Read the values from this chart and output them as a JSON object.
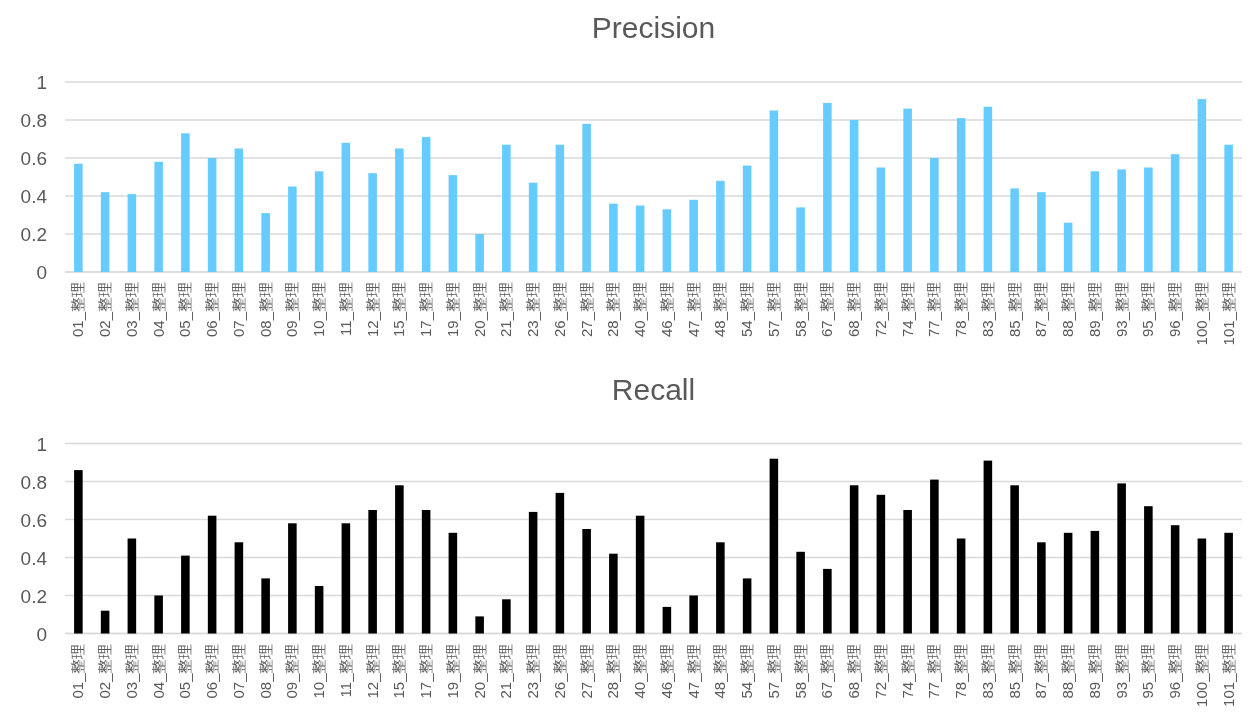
{
  "chart_data": [
    {
      "type": "bar",
      "title": "Precision",
      "categories": [
        "01_整理",
        "02_整理",
        "03_整理",
        "04_整理",
        "05_整理",
        "06_整理",
        "07_整理",
        "08_整理",
        "09_整理",
        "10_整理",
        "11_整理",
        "12_整理",
        "15_整理",
        "17_整理",
        "19_整理",
        "20_整理",
        "21_整理",
        "23_整理",
        "26_整理",
        "27_整理",
        "28_整理",
        "40_整理",
        "46_整理",
        "47_整理",
        "48_整理",
        "54_整理",
        "57_整理",
        "58_整理",
        "67_整理",
        "68_整理",
        "72_整理",
        "74_整理",
        "77_整理",
        "78_整理",
        "83_整理",
        "85_整理",
        "87_整理",
        "88_整理",
        "89_整理",
        "93_整理",
        "95_整理",
        "96_整理",
        "100_整理",
        "101_整理"
      ],
      "series": [
        {
          "color": "#66ccff",
          "values": [
            0.57,
            0.42,
            0.41,
            0.58,
            0.73,
            0.6,
            0.65,
            0.31,
            0.45,
            0.53,
            0.68,
            0.52,
            0.65,
            0.71,
            0.51,
            0.2,
            0.67,
            0.47,
            0.67,
            0.78,
            0.36,
            0.35,
            0.33,
            0.38,
            0.48,
            0.56,
            0.85,
            0.34,
            0.89,
            0.8,
            0.55,
            0.86,
            0.6,
            0.81,
            0.87,
            0.44,
            0.42,
            0.26,
            0.53,
            0.54,
            0.55,
            0.62,
            0.91,
            0.67
          ]
        }
      ],
      "ylim": [
        0,
        1
      ],
      "yticks": [
        0,
        0.2,
        0.4,
        0.6,
        0.8,
        1
      ],
      "grid": "y"
    },
    {
      "type": "bar",
      "title": "Recall",
      "categories": [
        "01_整理",
        "02_整理",
        "03_整理",
        "04_整理",
        "05_整理",
        "06_整理",
        "07_整理",
        "08_整理",
        "09_整理",
        "10_整理",
        "11_整理",
        "12_整理",
        "15_整理",
        "17_整理",
        "19_整理",
        "20_整理",
        "21_整理",
        "23_整理",
        "26_整理",
        "27_整理",
        "28_整理",
        "40_整理",
        "46_整理",
        "47_整理",
        "48_整理",
        "54_整理",
        "57_整理",
        "58_整理",
        "67_整理",
        "68_整理",
        "72_整理",
        "74_整理",
        "77_整理",
        "78_整理",
        "83_整理",
        "85_整理",
        "87_整理",
        "88_整理",
        "89_整理",
        "93_整理",
        "95_整理",
        "96_整理",
        "100_整理",
        "101_整理"
      ],
      "series": [
        {
          "color": "#000000",
          "values": [
            0.86,
            0.12,
            0.5,
            0.2,
            0.41,
            0.62,
            0.48,
            0.29,
            0.58,
            0.25,
            0.58,
            0.65,
            0.78,
            0.65,
            0.53,
            0.09,
            0.18,
            0.64,
            0.74,
            0.55,
            0.42,
            0.62,
            0.14,
            0.2,
            0.48,
            0.29,
            0.92,
            0.43,
            0.34,
            0.78,
            0.73,
            0.65,
            0.81,
            0.5,
            0.91,
            0.78,
            0.48,
            0.53,
            0.54,
            0.79,
            0.67,
            0.57,
            0.5,
            0.53
          ]
        }
      ],
      "ylim": [
        0,
        1
      ],
      "yticks": [
        0,
        0.2,
        0.4,
        0.6,
        0.8,
        1
      ],
      "grid": "y"
    }
  ]
}
